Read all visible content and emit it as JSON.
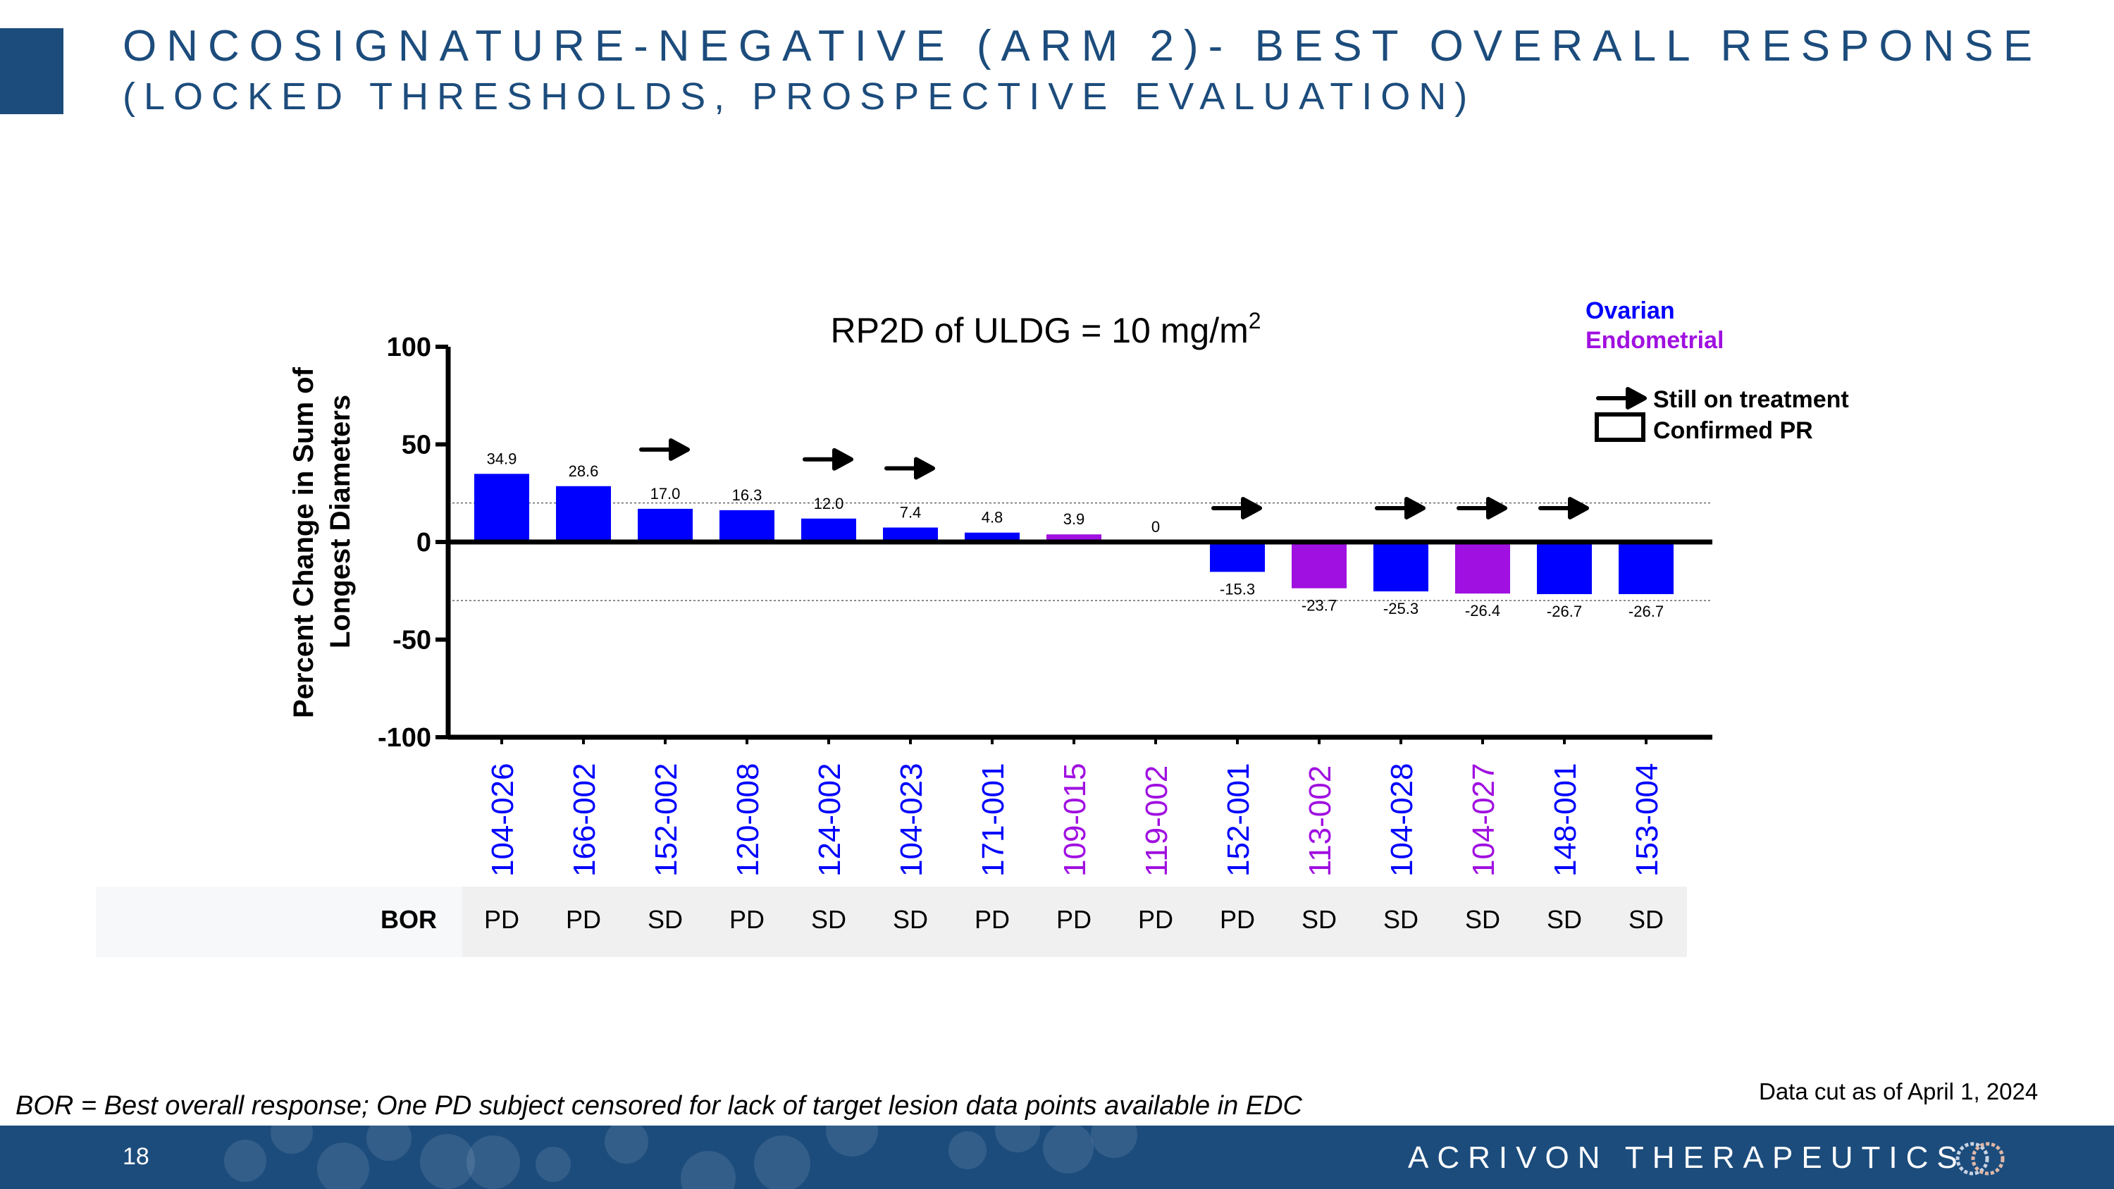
{
  "slide": {
    "title_line1": "ONCOSIGNATURE-NEGATIVE (ARM 2)- BEST OVERALL RESPONSE",
    "title_line2": "(LOCKED THRESHOLDS, PROSPECTIVE EVALUATION)",
    "footnote": "BOR = Best overall response; One PD subject censored for lack of target lesion data points available in EDC",
    "data_cut": "Data cut as of April 1, 2024",
    "page_number": "18",
    "company": "ACRIVON THERAPEUTICS",
    "logo_icon": "acrivon-logo-icon"
  },
  "colors": {
    "ovarian": "#0000ff",
    "endometrial": "#a010e0",
    "brand": "#1c4c7c"
  },
  "chart_data": {
    "type": "bar",
    "title": "RP2D of ULDG = 10 mg/m",
    "title_sup": "2",
    "ylabel_line1": "Percent Change in Sum of",
    "ylabel_line2": "Longest Diameters",
    "ylim": [
      -100,
      100
    ],
    "yticks": [
      100,
      50,
      0,
      -50,
      -100
    ],
    "reference_lines": [
      20,
      -30
    ],
    "legend": {
      "ovarian": "Ovarian",
      "endometrial": "Endometrial",
      "still_on_treatment": "Still on treatment",
      "confirmed_pr": "Confirmed PR"
    },
    "categories": [
      "104-026",
      "166-002",
      "152-002",
      "120-008",
      "124-002",
      "104-023",
      "171-001",
      "109-015",
      "119-002",
      "152-001",
      "113-002",
      "104-028",
      "104-027",
      "148-001",
      "153-004"
    ],
    "values": [
      34.9,
      28.6,
      17.0,
      16.3,
      12.0,
      7.4,
      4.8,
      3.9,
      0,
      -15.3,
      -23.7,
      -25.3,
      -26.4,
      -26.7,
      -26.7
    ],
    "value_labels": [
      "34.9",
      "28.6",
      "17.0",
      "16.3",
      "12.0",
      "7.4",
      "4.8",
      "3.9",
      "0",
      "-15.3",
      "-23.7",
      "-25.3",
      "-26.4",
      "-26.7",
      "-26.7"
    ],
    "tumor_type": [
      "ovarian",
      "ovarian",
      "ovarian",
      "ovarian",
      "ovarian",
      "ovarian",
      "ovarian",
      "endometrial",
      "endometrial",
      "ovarian",
      "endometrial",
      "ovarian",
      "endometrial",
      "ovarian",
      "ovarian"
    ],
    "still_on_treatment": [
      false,
      false,
      true,
      false,
      true,
      true,
      false,
      false,
      false,
      true,
      false,
      true,
      true,
      true,
      false
    ],
    "bor_label": "BOR",
    "bor": [
      "PD",
      "PD",
      "SD",
      "PD",
      "SD",
      "SD",
      "PD",
      "PD",
      "PD",
      "PD",
      "SD",
      "SD",
      "SD",
      "SD",
      "SD"
    ]
  }
}
